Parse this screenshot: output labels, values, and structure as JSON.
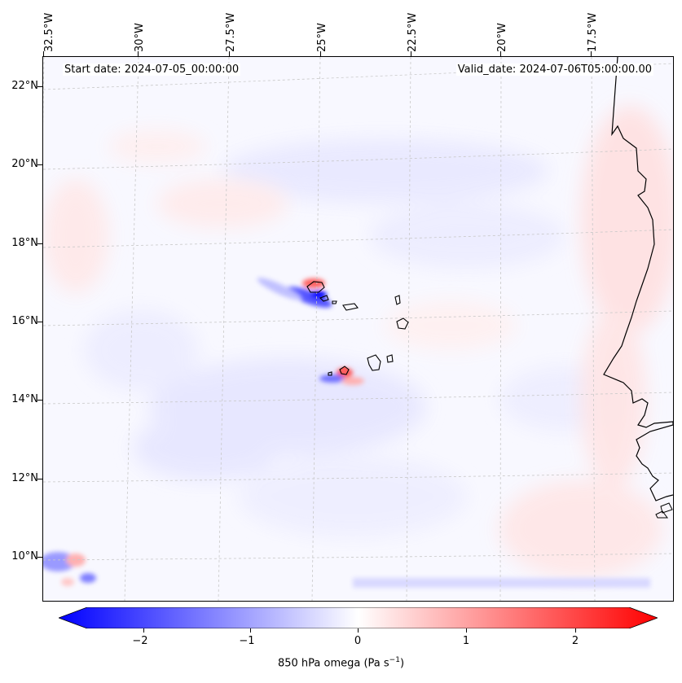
{
  "header": {
    "start_date": "Start date: 2024-07-05_00:00:00",
    "valid_date": "Valid_date: 2024-07-06T05:00:00.00"
  },
  "axes": {
    "lon_labels": [
      "32.5°W",
      "30°W",
      "27.5°W",
      "25°W",
      "22.5°W",
      "20°W",
      "17.5°W"
    ],
    "lat_labels": [
      "22°N",
      "20°N",
      "18°N",
      "16°N",
      "14°N",
      "12°N",
      "10°N"
    ]
  },
  "colorbar": {
    "label_prefix": "850 hPa omega (Pa s",
    "label_exp": "−1",
    "label_suffix": ")",
    "ticks": [
      "−2",
      "−1",
      "0",
      "1",
      "2"
    ],
    "min_color": "#0000ff",
    "mid_color": "#ffffff",
    "max_color": "#ff0000"
  },
  "colors": {
    "coastline": "#000000",
    "gridline": "#c8c8c8"
  }
}
